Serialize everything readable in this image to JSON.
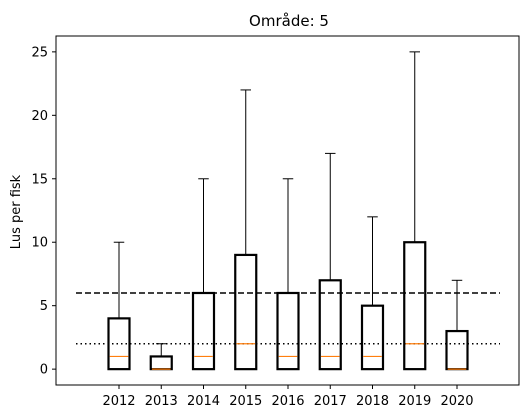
{
  "chart_data": {
    "type": "box",
    "title": "Område: 5",
    "xlabel": "",
    "ylabel": "Lus per fisk",
    "ylim": [
      -1.25,
      26.25
    ],
    "yticks": [
      0,
      5,
      10,
      15,
      20,
      25
    ],
    "grid": false,
    "categories": [
      "2012",
      "2013",
      "2014",
      "2015",
      "2016",
      "2017",
      "2018",
      "2019",
      "2020"
    ],
    "boxes": [
      {
        "year": "2012",
        "whisker_low": 0,
        "q1": 0,
        "median": 1,
        "q3": 4,
        "whisker_high": 10
      },
      {
        "year": "2013",
        "whisker_low": 0,
        "q1": 0,
        "median": 0,
        "q3": 1,
        "whisker_high": 2
      },
      {
        "year": "2014",
        "whisker_low": 0,
        "q1": 0,
        "median": 1,
        "q3": 6,
        "whisker_high": 15
      },
      {
        "year": "2015",
        "whisker_low": 0,
        "q1": 0,
        "median": 2,
        "q3": 9,
        "whisker_high": 22
      },
      {
        "year": "2016",
        "whisker_low": 0,
        "q1": 0,
        "median": 1,
        "q3": 6,
        "whisker_high": 15
      },
      {
        "year": "2017",
        "whisker_low": 0,
        "q1": 0,
        "median": 1,
        "q3": 7,
        "whisker_high": 17
      },
      {
        "year": "2018",
        "whisker_low": 0,
        "q1": 0,
        "median": 1,
        "q3": 5,
        "whisker_high": 12
      },
      {
        "year": "2019",
        "whisker_low": 0,
        "q1": 0,
        "median": 2,
        "q3": 10,
        "whisker_high": 25
      },
      {
        "year": "2020",
        "whisker_low": 0,
        "q1": 0,
        "median": 0,
        "q3": 3,
        "whisker_high": 7
      }
    ],
    "reference_lines": [
      {
        "value": 6,
        "style": "dashed"
      },
      {
        "value": 2,
        "style": "dotted"
      }
    ],
    "colors": {
      "box": "#000000",
      "median": "#ff7f0e",
      "reference": "#000000"
    }
  }
}
